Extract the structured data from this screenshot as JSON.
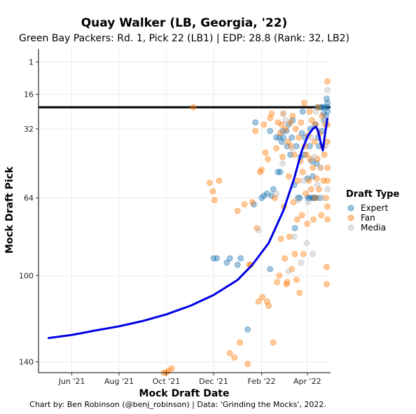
{
  "chart_data": {
    "type": "scatter",
    "title": "Quay Walker (LB, Georgia, '22)",
    "subtitle": "Green Bay Packers: Rd. 1, Pick 22 (LB1) | EDP: 28.8 (Rank: 32, LB2)",
    "xlabel": "Mock Draft Date",
    "ylabel": "Mock Draft Pick",
    "caption": "Chart by: Ben Robinson (@benj_robinson) | Data: 'Grinding the Mocks', 2022.",
    "x_range": [
      "2022-04-27",
      "2022-05-01"
    ],
    "x_ticks": [
      {
        "date": "2021-06-01",
        "label": "Jun '21"
      },
      {
        "date": "2021-08-01",
        "label": "Aug '21"
      },
      {
        "date": "2021-10-01",
        "label": "Oct '21"
      },
      {
        "date": "2021-12-01",
        "label": "Dec '21"
      },
      {
        "date": "2022-02-01",
        "label": "Feb '22"
      },
      {
        "date": "2022-04-01",
        "label": "Apr '22"
      }
    ],
    "y_reversed": true,
    "y_range": [
      -5,
      145
    ],
    "y_ticks": [
      1,
      16,
      32,
      64,
      100,
      140
    ],
    "grid": true,
    "reference_line": {
      "y": 22
    },
    "legend": {
      "title": "Draft Type",
      "position": "right",
      "entries": [
        {
          "name": "Expert",
          "color": "#1f77b4"
        },
        {
          "name": "Fan",
          "color": "#ff7f0e"
        },
        {
          "name": "Media",
          "color": "#b9b9b9"
        }
      ]
    },
    "trend": {
      "color": "#0000e6",
      "points": [
        [
          "2021-05-01",
          129
        ],
        [
          "2021-06-01",
          127.5
        ],
        [
          "2021-07-01",
          125.5
        ],
        [
          "2021-08-01",
          123.5
        ],
        [
          "2021-09-01",
          121
        ],
        [
          "2021-10-01",
          118
        ],
        [
          "2021-11-01",
          114
        ],
        [
          "2021-12-01",
          109
        ],
        [
          "2022-01-01",
          102
        ],
        [
          "2022-01-20",
          95
        ],
        [
          "2022-02-10",
          85
        ],
        [
          "2022-03-01",
          70
        ],
        [
          "2022-03-15",
          55
        ],
        [
          "2022-03-25",
          42
        ],
        [
          "2022-04-02",
          35
        ],
        [
          "2022-04-08",
          32
        ],
        [
          "2022-04-12",
          31
        ],
        [
          "2022-04-15",
          33
        ],
        [
          "2022-04-18",
          38
        ],
        [
          "2022-04-21",
          42
        ],
        [
          "2022-04-24",
          34
        ],
        [
          "2022-04-27",
          27
        ]
      ]
    },
    "series": [
      {
        "name": "Expert",
        "color": "#1f77b4",
        "points": [
          [
            "2021-12-01",
            92
          ],
          [
            "2021-12-05",
            92
          ],
          [
            "2021-12-18",
            94
          ],
          [
            "2021-12-22",
            92
          ],
          [
            "2022-01-01",
            95
          ],
          [
            "2022-01-05",
            92
          ],
          [
            "2022-01-14",
            125
          ],
          [
            "2022-01-22",
            67
          ],
          [
            "2022-01-24",
            29
          ],
          [
            "2022-02-01",
            64
          ],
          [
            "2022-02-04",
            63
          ],
          [
            "2022-02-08",
            62
          ],
          [
            "2022-02-12",
            33
          ],
          [
            "2022-02-12",
            97
          ],
          [
            "2022-02-14",
            63
          ],
          [
            "2022-02-16",
            60
          ],
          [
            "2022-02-20",
            36
          ],
          [
            "2022-02-22",
            52
          ],
          [
            "2022-02-24",
            36
          ],
          [
            "2022-02-25",
            52
          ],
          [
            "2022-02-27",
            38
          ],
          [
            "2022-02-28",
            33
          ],
          [
            "2022-03-01",
            36
          ],
          [
            "2022-03-05",
            33
          ],
          [
            "2022-03-06",
            40
          ],
          [
            "2022-03-08",
            30
          ],
          [
            "2022-03-10",
            44
          ],
          [
            "2022-03-12",
            36
          ],
          [
            "2022-03-13",
            28
          ],
          [
            "2022-03-15",
            58
          ],
          [
            "2022-03-16",
            78
          ],
          [
            "2022-03-18",
            40
          ],
          [
            "2022-03-20",
            64
          ],
          [
            "2022-03-22",
            64
          ],
          [
            "2022-03-23",
            45
          ],
          [
            "2022-03-25",
            34
          ],
          [
            "2022-03-26",
            24
          ],
          [
            "2022-03-28",
            44
          ],
          [
            "2022-03-29",
            36
          ],
          [
            "2022-04-01",
            55
          ],
          [
            "2022-04-02",
            64
          ],
          [
            "2022-04-03",
            64
          ],
          [
            "2022-04-04",
            40
          ],
          [
            "2022-04-05",
            32
          ],
          [
            "2022-04-06",
            64
          ],
          [
            "2022-04-07",
            47
          ],
          [
            "2022-04-08",
            54
          ],
          [
            "2022-04-09",
            64
          ],
          [
            "2022-04-10",
            64
          ],
          [
            "2022-04-11",
            30
          ],
          [
            "2022-04-12",
            64
          ],
          [
            "2022-04-13",
            48
          ],
          [
            "2022-04-14",
            22
          ],
          [
            "2022-04-15",
            36
          ],
          [
            "2022-04-16",
            40
          ],
          [
            "2022-04-17",
            64
          ],
          [
            "2022-04-18",
            22
          ],
          [
            "2022-04-19",
            22
          ],
          [
            "2022-04-20",
            33
          ],
          [
            "2022-04-21",
            22
          ],
          [
            "2022-04-22",
            25
          ],
          [
            "2022-04-23",
            28
          ],
          [
            "2022-04-24",
            22
          ],
          [
            "2022-04-25",
            26
          ],
          [
            "2022-04-26",
            18
          ],
          [
            "2022-04-27",
            20
          ],
          [
            "2022-04-27",
            24
          ],
          [
            "2022-04-27",
            22
          ]
        ]
      },
      {
        "name": "Fan",
        "color": "#ff7f0e",
        "points": [
          [
            "2021-09-28",
            145
          ],
          [
            "2021-10-01",
            145
          ],
          [
            "2021-10-04",
            144
          ],
          [
            "2021-10-08",
            143
          ],
          [
            "2021-11-05",
            22
          ],
          [
            "2021-11-26",
            57
          ],
          [
            "2021-11-30",
            61
          ],
          [
            "2021-12-02",
            65
          ],
          [
            "2021-12-08",
            56
          ],
          [
            "2021-12-22",
            136
          ],
          [
            "2021-12-28",
            138
          ],
          [
            "2022-01-01",
            70
          ],
          [
            "2022-01-04",
            131
          ],
          [
            "2022-01-10",
            67
          ],
          [
            "2022-01-14",
            141
          ],
          [
            "2022-01-16",
            95
          ],
          [
            "2022-01-18",
            95
          ],
          [
            "2022-01-20",
            66
          ],
          [
            "2022-01-24",
            33
          ],
          [
            "2022-01-26",
            78
          ],
          [
            "2022-01-28",
            112
          ],
          [
            "2022-01-30",
            52
          ],
          [
            "2022-02-01",
            51
          ],
          [
            "2022-02-02",
            110
          ],
          [
            "2022-02-04",
            30
          ],
          [
            "2022-02-06",
            43
          ],
          [
            "2022-02-08",
            112
          ],
          [
            "2022-02-09",
            46
          ],
          [
            "2022-02-10",
            114
          ],
          [
            "2022-02-12",
            27
          ],
          [
            "2022-02-14",
            25
          ],
          [
            "2022-02-16",
            131
          ],
          [
            "2022-02-18",
            64
          ],
          [
            "2022-02-20",
            41
          ],
          [
            "2022-02-21",
            103
          ],
          [
            "2022-02-22",
            29
          ],
          [
            "2022-02-24",
            100
          ],
          [
            "2022-02-25",
            34
          ],
          [
            "2022-02-26",
            83
          ],
          [
            "2022-02-27",
            30
          ],
          [
            "2022-02-28",
            45
          ],
          [
            "2022-03-01",
            25
          ],
          [
            "2022-03-02",
            68
          ],
          [
            "2022-03-03",
            92
          ],
          [
            "2022-03-04",
            32
          ],
          [
            "2022-03-05",
            104
          ],
          [
            "2022-03-06",
            103
          ],
          [
            "2022-03-07",
            38
          ],
          [
            "2022-03-08",
            54
          ],
          [
            "2022-03-09",
            82
          ],
          [
            "2022-03-10",
            29
          ],
          [
            "2022-03-11",
            40
          ],
          [
            "2022-03-12",
            97
          ],
          [
            "2022-03-13",
            26
          ],
          [
            "2022-03-14",
            66
          ],
          [
            "2022-03-15",
            44
          ],
          [
            "2022-03-16",
            90
          ],
          [
            "2022-03-17",
            32
          ],
          [
            "2022-03-18",
            102
          ],
          [
            "2022-03-19",
            74
          ],
          [
            "2022-03-20",
            56
          ],
          [
            "2022-03-21",
            36
          ],
          [
            "2022-03-22",
            108
          ],
          [
            "2022-03-23",
            47
          ],
          [
            "2022-03-24",
            29
          ],
          [
            "2022-03-25",
            72
          ],
          [
            "2022-03-26",
            52
          ],
          [
            "2022-03-27",
            90
          ],
          [
            "2022-03-28",
            20
          ],
          [
            "2022-03-29",
            40
          ],
          [
            "2022-03-30",
            62
          ],
          [
            "2022-03-31",
            44
          ],
          [
            "2022-04-01",
            76
          ],
          [
            "2022-04-02",
            35
          ],
          [
            "2022-04-03",
            56
          ],
          [
            "2022-04-04",
            24
          ],
          [
            "2022-04-05",
            46
          ],
          [
            "2022-04-06",
            60
          ],
          [
            "2022-04-07",
            28
          ],
          [
            "2022-04-08",
            50
          ],
          [
            "2022-04-09",
            74
          ],
          [
            "2022-04-10",
            38
          ],
          [
            "2022-04-11",
            64
          ],
          [
            "2022-04-12",
            30
          ],
          [
            "2022-04-13",
            55
          ],
          [
            "2022-04-14",
            46
          ],
          [
            "2022-04-15",
            22
          ],
          [
            "2022-04-16",
            60
          ],
          [
            "2022-04-17",
            34
          ],
          [
            "2022-04-18",
            50
          ],
          [
            "2022-04-19",
            72
          ],
          [
            "2022-04-20",
            26
          ],
          [
            "2022-04-21",
            40
          ],
          [
            "2022-04-22",
            56
          ],
          [
            "2022-04-23",
            44
          ],
          [
            "2022-04-24",
            30
          ],
          [
            "2022-04-25",
            64
          ],
          [
            "2022-04-26",
            96
          ],
          [
            "2022-04-26",
            104
          ],
          [
            "2022-04-27",
            30
          ],
          [
            "2022-04-27",
            38
          ],
          [
            "2022-04-27",
            50
          ],
          [
            "2022-04-27",
            56
          ],
          [
            "2022-04-27",
            68
          ],
          [
            "2022-04-27",
            74
          ],
          [
            "2022-04-27",
            10
          ]
        ]
      },
      {
        "name": "Media",
        "color": "#b9b9b9",
        "points": [
          [
            "2022-01-28",
            79
          ],
          [
            "2022-02-20",
            62
          ],
          [
            "2022-02-28",
            48
          ],
          [
            "2022-03-01",
            25
          ],
          [
            "2022-03-04",
            28
          ],
          [
            "2022-03-08",
            98
          ],
          [
            "2022-03-13",
            41
          ],
          [
            "2022-03-15",
            82
          ],
          [
            "2022-03-20",
            65
          ],
          [
            "2022-03-24",
            94
          ],
          [
            "2022-03-27",
            56
          ],
          [
            "2022-03-31",
            85
          ],
          [
            "2022-04-02",
            66
          ],
          [
            "2022-04-06",
            36
          ],
          [
            "2022-04-08",
            90
          ],
          [
            "2022-04-10",
            45
          ],
          [
            "2022-04-12",
            24
          ],
          [
            "2022-04-14",
            58
          ],
          [
            "2022-04-16",
            33
          ],
          [
            "2022-04-18",
            50
          ],
          [
            "2022-04-20",
            64
          ],
          [
            "2022-04-22",
            28
          ],
          [
            "2022-04-24",
            40
          ],
          [
            "2022-04-26",
            30
          ],
          [
            "2022-04-27",
            60
          ],
          [
            "2022-04-27",
            14
          ]
        ]
      }
    ]
  }
}
